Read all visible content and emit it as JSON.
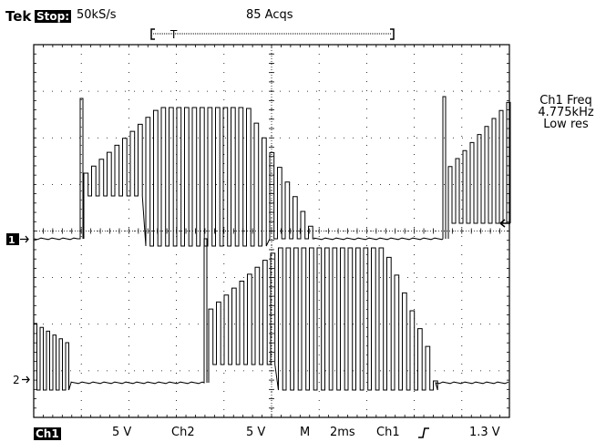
{
  "header": {
    "brand": "Tek",
    "run_state": "Stop:",
    "sample_rate": "50kS/s",
    "acquisitions": "85 Acqs",
    "trigger_position_marker": "T"
  },
  "side_panel": {
    "measurement_label": "Ch1 Freq",
    "measurement_value": "4.775kHz",
    "measurement_note": "Low res"
  },
  "channel_markers": {
    "ch1": "1",
    "ch2": "2"
  },
  "status_bar": {
    "ch1_label": "Ch1",
    "ch1_scale": "5 V",
    "ch2_label": "Ch2",
    "ch2_scale": "5 V",
    "timebase_mode": "M",
    "timebase": "2ms",
    "trigger_source": "Ch1",
    "trigger_slope_icon": "rising-edge-icon",
    "trigger_level": "1.3 V"
  },
  "colors": {
    "trace": "#000000",
    "grid": "#000000",
    "background": "#ffffff"
  }
}
